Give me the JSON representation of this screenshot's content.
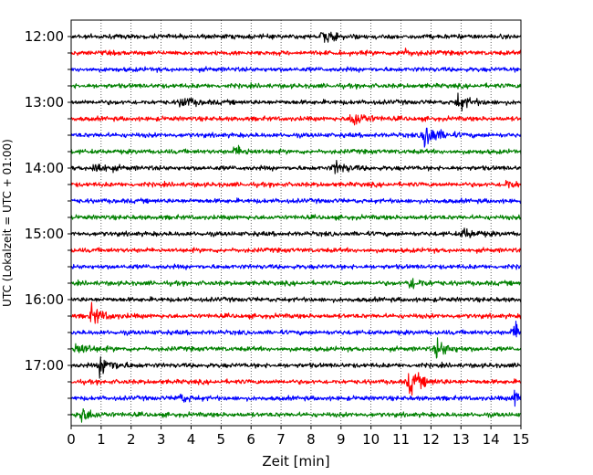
{
  "chart_data": {
    "type": "line",
    "title": "",
    "xlabel": "Zeit  [min]",
    "ylabel": "UTC (Lokalzeit = UTC + 01:00)",
    "xlim": [
      0,
      15
    ],
    "x_ticks": [
      0,
      1,
      2,
      3,
      4,
      5,
      6,
      7,
      8,
      9,
      10,
      11,
      12,
      13,
      14,
      15
    ],
    "y_tick_labels": [
      "12:00",
      "13:00",
      "14:00",
      "15:00",
      "16:00",
      "17:00"
    ],
    "x_grid": "dotted",
    "trace_interval_minutes": 15,
    "start_time_utc": "12:00",
    "end_time_utc": "17:45",
    "color_cycle": [
      "#000000",
      "#ff0000",
      "#0000ff",
      "#008000"
    ],
    "series": [
      {
        "start": "12:00",
        "color": "#000000",
        "events": [
          {
            "t": 8.4,
            "amp": 1.0
          }
        ]
      },
      {
        "start": "12:15",
        "color": "#ff0000",
        "events": [
          {
            "t": 11.0,
            "amp": 0.6
          }
        ]
      },
      {
        "start": "12:30",
        "color": "#0000ff",
        "events": []
      },
      {
        "start": "12:45",
        "color": "#008000",
        "events": []
      },
      {
        "start": "13:00",
        "color": "#000000",
        "events": [
          {
            "t": 3.7,
            "amp": 0.9
          },
          {
            "t": 12.9,
            "amp": 1.3
          }
        ]
      },
      {
        "start": "13:15",
        "color": "#ff0000",
        "events": [
          {
            "t": 9.4,
            "amp": 1.5
          }
        ]
      },
      {
        "start": "13:30",
        "color": "#0000ff",
        "events": [
          {
            "t": 11.8,
            "amp": 2.4
          }
        ]
      },
      {
        "start": "13:45",
        "color": "#008000",
        "events": [
          {
            "t": 5.5,
            "amp": 0.8
          }
        ]
      },
      {
        "start": "14:00",
        "color": "#000000",
        "events": [
          {
            "t": 0.8,
            "amp": 1.0
          },
          {
            "t": 8.8,
            "amp": 1.0
          }
        ]
      },
      {
        "start": "14:15",
        "color": "#ff0000",
        "events": [
          {
            "t": 14.5,
            "amp": 0.7
          }
        ]
      },
      {
        "start": "14:30",
        "color": "#0000ff",
        "events": []
      },
      {
        "start": "14:45",
        "color": "#008000",
        "events": []
      },
      {
        "start": "15:00",
        "color": "#000000",
        "events": [
          {
            "t": 13.1,
            "amp": 0.8
          }
        ]
      },
      {
        "start": "15:15",
        "color": "#ff0000",
        "events": []
      },
      {
        "start": "15:30",
        "color": "#0000ff",
        "events": []
      },
      {
        "start": "15:45",
        "color": "#008000",
        "events": [
          {
            "t": 11.3,
            "amp": 1.0
          }
        ]
      },
      {
        "start": "16:00",
        "color": "#000000",
        "events": []
      },
      {
        "start": "16:15",
        "color": "#ff0000",
        "events": [
          {
            "t": 0.7,
            "amp": 1.5
          }
        ]
      },
      {
        "start": "16:30",
        "color": "#0000ff",
        "events": [
          {
            "t": 14.8,
            "amp": 1.6
          }
        ]
      },
      {
        "start": "16:45",
        "color": "#008000",
        "events": [
          {
            "t": 0.2,
            "amp": 1.2
          },
          {
            "t": 12.2,
            "amp": 1.5
          }
        ]
      },
      {
        "start": "17:00",
        "color": "#000000",
        "events": [
          {
            "t": 1.0,
            "amp": 1.8
          }
        ]
      },
      {
        "start": "17:15",
        "color": "#ff0000",
        "events": [
          {
            "t": 11.3,
            "amp": 2.0
          }
        ]
      },
      {
        "start": "17:30",
        "color": "#0000ff",
        "events": [
          {
            "t": 3.6,
            "amp": 0.7
          },
          {
            "t": 14.8,
            "amp": 1.3
          }
        ]
      },
      {
        "start": "17:45",
        "color": "#008000",
        "events": [
          {
            "t": 0.3,
            "amp": 1.3
          }
        ]
      }
    ]
  }
}
